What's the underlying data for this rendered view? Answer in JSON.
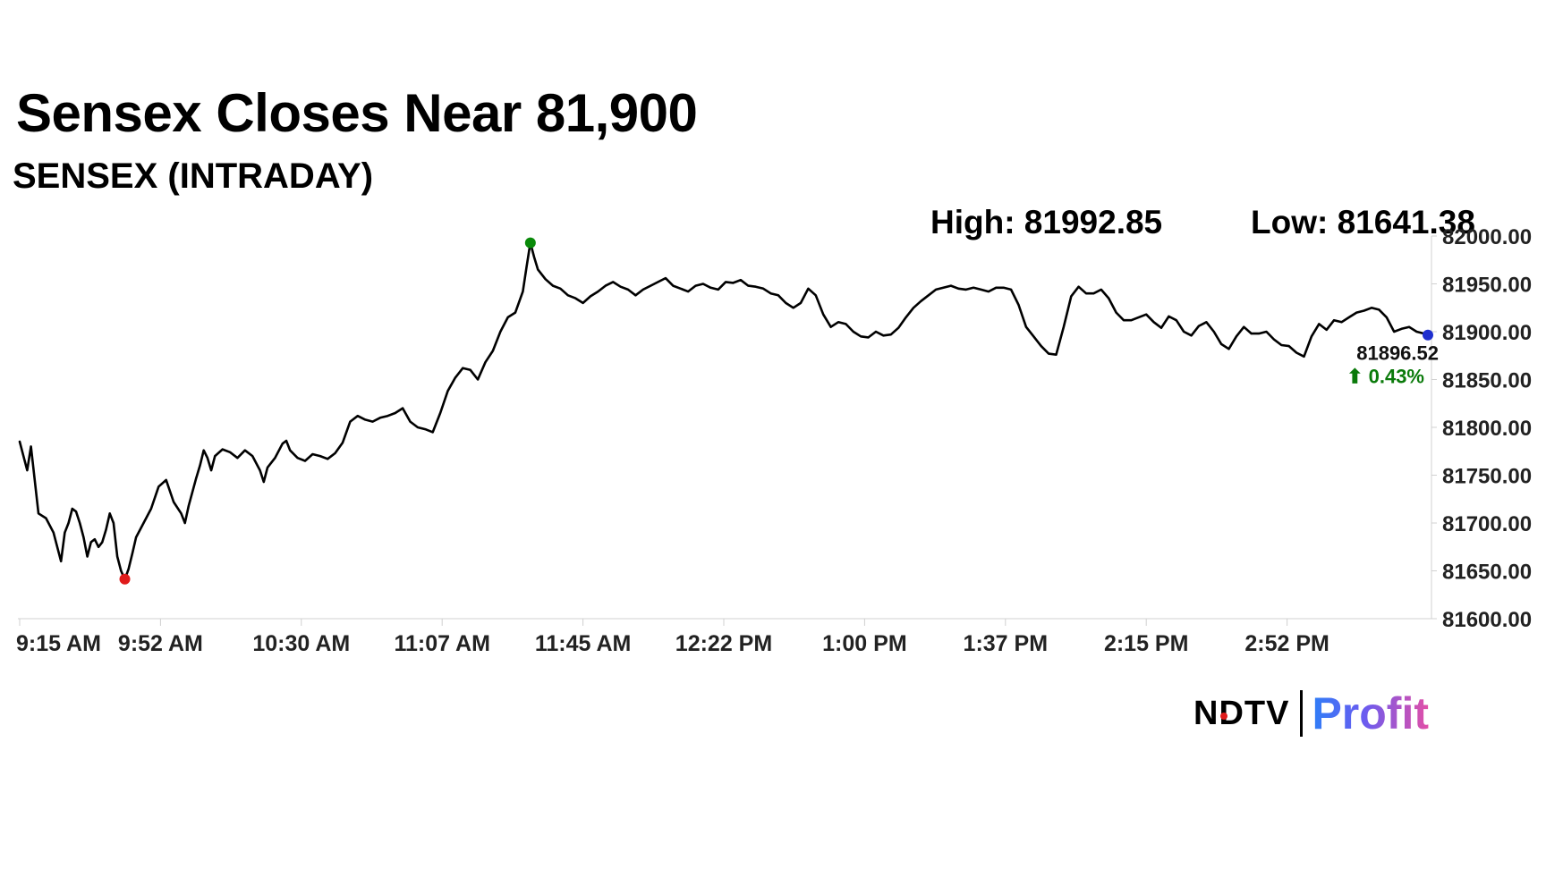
{
  "headline": "Sensex Closes Near 81,900",
  "subtitle": "SENSEX (INTRADAY)",
  "high_label": "High: 81992.85",
  "low_label": "Low: 81641.38",
  "last_value_label": "81896.52",
  "change_label": "⬆ 0.43%",
  "brand": {
    "left": "NDTV",
    "right": "Profit"
  },
  "colors": {
    "line": "#000000",
    "high_marker": "#0a8a0a",
    "low_marker": "#e01b1b",
    "last_marker": "#1f2fcf",
    "change_text": "#0a7a0a",
    "axis": "#d0d0d0",
    "brand_dot": "#e01b1b"
  },
  "chart_data": {
    "type": "line",
    "title": "SENSEX (INTRADAY)",
    "xlabel": "",
    "ylabel": "",
    "x_ticks": [
      "9:15 AM",
      "9:52 AM",
      "10:30 AM",
      "11:07 AM",
      "11:45 AM",
      "12:22 PM",
      "1:00 PM",
      "1:37 PM",
      "2:15 PM",
      "2:52 PM"
    ],
    "y_ticks": [
      "81600.00",
      "81650.00",
      "81700.00",
      "81750.00",
      "81800.00",
      "81850.00",
      "81900.00",
      "81950.00",
      "82000.00"
    ],
    "ylim": [
      81600,
      82000
    ],
    "x_range_minutes": [
      0,
      375
    ],
    "grid": false,
    "high": 81992.85,
    "low": 81641.38,
    "close": 81896.52,
    "change_pct": 0.43,
    "series": [
      {
        "points": [
          [
            0,
            81785
          ],
          [
            1,
            81770
          ],
          [
            2,
            81755
          ],
          [
            3,
            81780
          ],
          [
            4,
            81745
          ],
          [
            5,
            81710
          ],
          [
            7,
            81705
          ],
          [
            9,
            81690
          ],
          [
            10,
            81675
          ],
          [
            11,
            81660
          ],
          [
            12,
            81690
          ],
          [
            13,
            81700
          ],
          [
            14,
            81715
          ],
          [
            15,
            81712
          ],
          [
            16,
            81700
          ],
          [
            17,
            81685
          ],
          [
            18,
            81665
          ],
          [
            19,
            81680
          ],
          [
            20,
            81683
          ],
          [
            21,
            81675
          ],
          [
            22,
            81680
          ],
          [
            23,
            81693
          ],
          [
            24,
            81710
          ],
          [
            25,
            81700
          ],
          [
            26,
            81665
          ],
          [
            27,
            81650
          ],
          [
            28,
            81641
          ],
          [
            29,
            81652
          ],
          [
            30,
            81668
          ],
          [
            31,
            81685
          ],
          [
            33,
            81700
          ],
          [
            35,
            81715
          ],
          [
            37,
            81738
          ],
          [
            39,
            81745
          ],
          [
            41,
            81722
          ],
          [
            43,
            81710
          ],
          [
            44,
            81700
          ],
          [
            45,
            81718
          ],
          [
            47,
            81747
          ],
          [
            48,
            81760
          ],
          [
            49,
            81776
          ],
          [
            50,
            81768
          ],
          [
            51,
            81755
          ],
          [
            52,
            81770
          ],
          [
            54,
            81777
          ],
          [
            56,
            81774
          ],
          [
            58,
            81768
          ],
          [
            60,
            81776
          ],
          [
            62,
            81770
          ],
          [
            64,
            81755
          ],
          [
            65,
            81743
          ],
          [
            66,
            81758
          ],
          [
            68,
            81768
          ],
          [
            70,
            81783
          ],
          [
            71,
            81786
          ],
          [
            72,
            81776
          ],
          [
            74,
            81768
          ],
          [
            76,
            81765
          ],
          [
            78,
            81772
          ],
          [
            80,
            81770
          ],
          [
            82,
            81767
          ],
          [
            84,
            81773
          ],
          [
            86,
            81784
          ],
          [
            88,
            81806
          ],
          [
            90,
            81812
          ],
          [
            92,
            81808
          ],
          [
            94,
            81806
          ],
          [
            96,
            81810
          ],
          [
            98,
            81812
          ],
          [
            100,
            81815
          ],
          [
            102,
            81820
          ],
          [
            104,
            81806
          ],
          [
            106,
            81800
          ],
          [
            108,
            81798
          ],
          [
            110,
            81795
          ],
          [
            112,
            81815
          ],
          [
            114,
            81838
          ],
          [
            116,
            81852
          ],
          [
            118,
            81862
          ],
          [
            120,
            81860
          ],
          [
            122,
            81850
          ],
          [
            124,
            81868
          ],
          [
            126,
            81880
          ],
          [
            128,
            81900
          ],
          [
            130,
            81915
          ],
          [
            132,
            81920
          ],
          [
            134,
            81942
          ],
          [
            135,
            81968
          ],
          [
            136,
            81993
          ],
          [
            137,
            81978
          ],
          [
            138,
            81965
          ],
          [
            140,
            81955
          ],
          [
            142,
            81948
          ],
          [
            144,
            81945
          ],
          [
            146,
            81938
          ],
          [
            148,
            81935
          ],
          [
            150,
            81930
          ],
          [
            152,
            81937
          ],
          [
            154,
            81942
          ],
          [
            156,
            81948
          ],
          [
            158,
            81952
          ],
          [
            160,
            81947
          ],
          [
            162,
            81944
          ],
          [
            164,
            81938
          ],
          [
            166,
            81944
          ],
          [
            168,
            81948
          ],
          [
            170,
            81952
          ],
          [
            172,
            81956
          ],
          [
            174,
            81948
          ],
          [
            176,
            81945
          ],
          [
            178,
            81942
          ],
          [
            180,
            81948
          ],
          [
            182,
            81950
          ],
          [
            184,
            81946
          ],
          [
            186,
            81944
          ],
          [
            188,
            81952
          ],
          [
            190,
            81951
          ],
          [
            192,
            81954
          ],
          [
            194,
            81948
          ],
          [
            196,
            81947
          ],
          [
            198,
            81945
          ],
          [
            200,
            81940
          ],
          [
            202,
            81938
          ],
          [
            204,
            81930
          ],
          [
            206,
            81925
          ],
          [
            208,
            81930
          ],
          [
            210,
            81945
          ],
          [
            212,
            81938
          ],
          [
            214,
            81918
          ],
          [
            216,
            81905
          ],
          [
            218,
            81910
          ],
          [
            220,
            81908
          ],
          [
            222,
            81900
          ],
          [
            224,
            81895
          ],
          [
            226,
            81894
          ],
          [
            228,
            81900
          ],
          [
            230,
            81896
          ],
          [
            232,
            81897
          ],
          [
            234,
            81904
          ],
          [
            236,
            81915
          ],
          [
            238,
            81925
          ],
          [
            240,
            81932
          ],
          [
            242,
            81938
          ],
          [
            244,
            81944
          ],
          [
            246,
            81946
          ],
          [
            248,
            81948
          ],
          [
            250,
            81945
          ],
          [
            252,
            81944
          ],
          [
            254,
            81946
          ],
          [
            256,
            81944
          ],
          [
            258,
            81942
          ],
          [
            260,
            81946
          ],
          [
            262,
            81946
          ],
          [
            264,
            81944
          ],
          [
            266,
            81928
          ],
          [
            268,
            81905
          ],
          [
            270,
            81895
          ],
          [
            272,
            81885
          ],
          [
            274,
            81877
          ],
          [
            276,
            81876
          ],
          [
            278,
            81905
          ],
          [
            280,
            81937
          ],
          [
            282,
            81947
          ],
          [
            284,
            81940
          ],
          [
            286,
            81940
          ],
          [
            288,
            81944
          ],
          [
            290,
            81935
          ],
          [
            292,
            81920
          ],
          [
            294,
            81912
          ],
          [
            296,
            81912
          ],
          [
            298,
            81915
          ],
          [
            300,
            81918
          ],
          [
            302,
            81910
          ],
          [
            304,
            81904
          ],
          [
            306,
            81916
          ],
          [
            308,
            81912
          ],
          [
            310,
            81900
          ],
          [
            312,
            81896
          ],
          [
            314,
            81906
          ],
          [
            316,
            81910
          ],
          [
            318,
            81900
          ],
          [
            320,
            81887
          ],
          [
            322,
            81882
          ],
          [
            324,
            81895
          ],
          [
            326,
            81905
          ],
          [
            328,
            81898
          ],
          [
            330,
            81898
          ],
          [
            332,
            81900
          ],
          [
            334,
            81892
          ],
          [
            336,
            81886
          ],
          [
            338,
            81885
          ],
          [
            340,
            81878
          ],
          [
            342,
            81874
          ],
          [
            344,
            81895
          ],
          [
            346,
            81908
          ],
          [
            348,
            81902
          ],
          [
            350,
            81912
          ],
          [
            352,
            81910
          ],
          [
            354,
            81915
          ],
          [
            356,
            81920
          ],
          [
            358,
            81922
          ],
          [
            360,
            81925
          ],
          [
            362,
            81923
          ],
          [
            364,
            81915
          ],
          [
            366,
            81900
          ],
          [
            368,
            81903
          ],
          [
            370,
            81905
          ],
          [
            372,
            81900
          ],
          [
            374,
            81898
          ],
          [
            375,
            81896.52
          ]
        ]
      }
    ]
  }
}
